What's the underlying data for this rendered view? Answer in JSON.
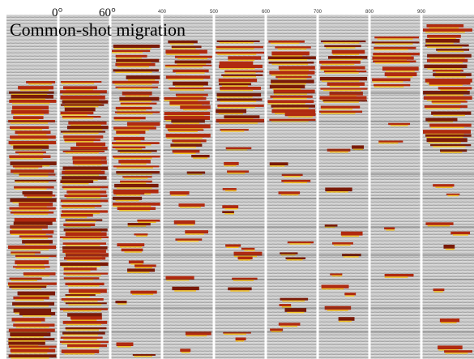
{
  "title": "Common-shot migration",
  "angle_labels": [
    "0°",
    "60°"
  ],
  "trace_labels": [
    "400",
    "500",
    "600",
    "700",
    "800",
    "900"
  ]
}
